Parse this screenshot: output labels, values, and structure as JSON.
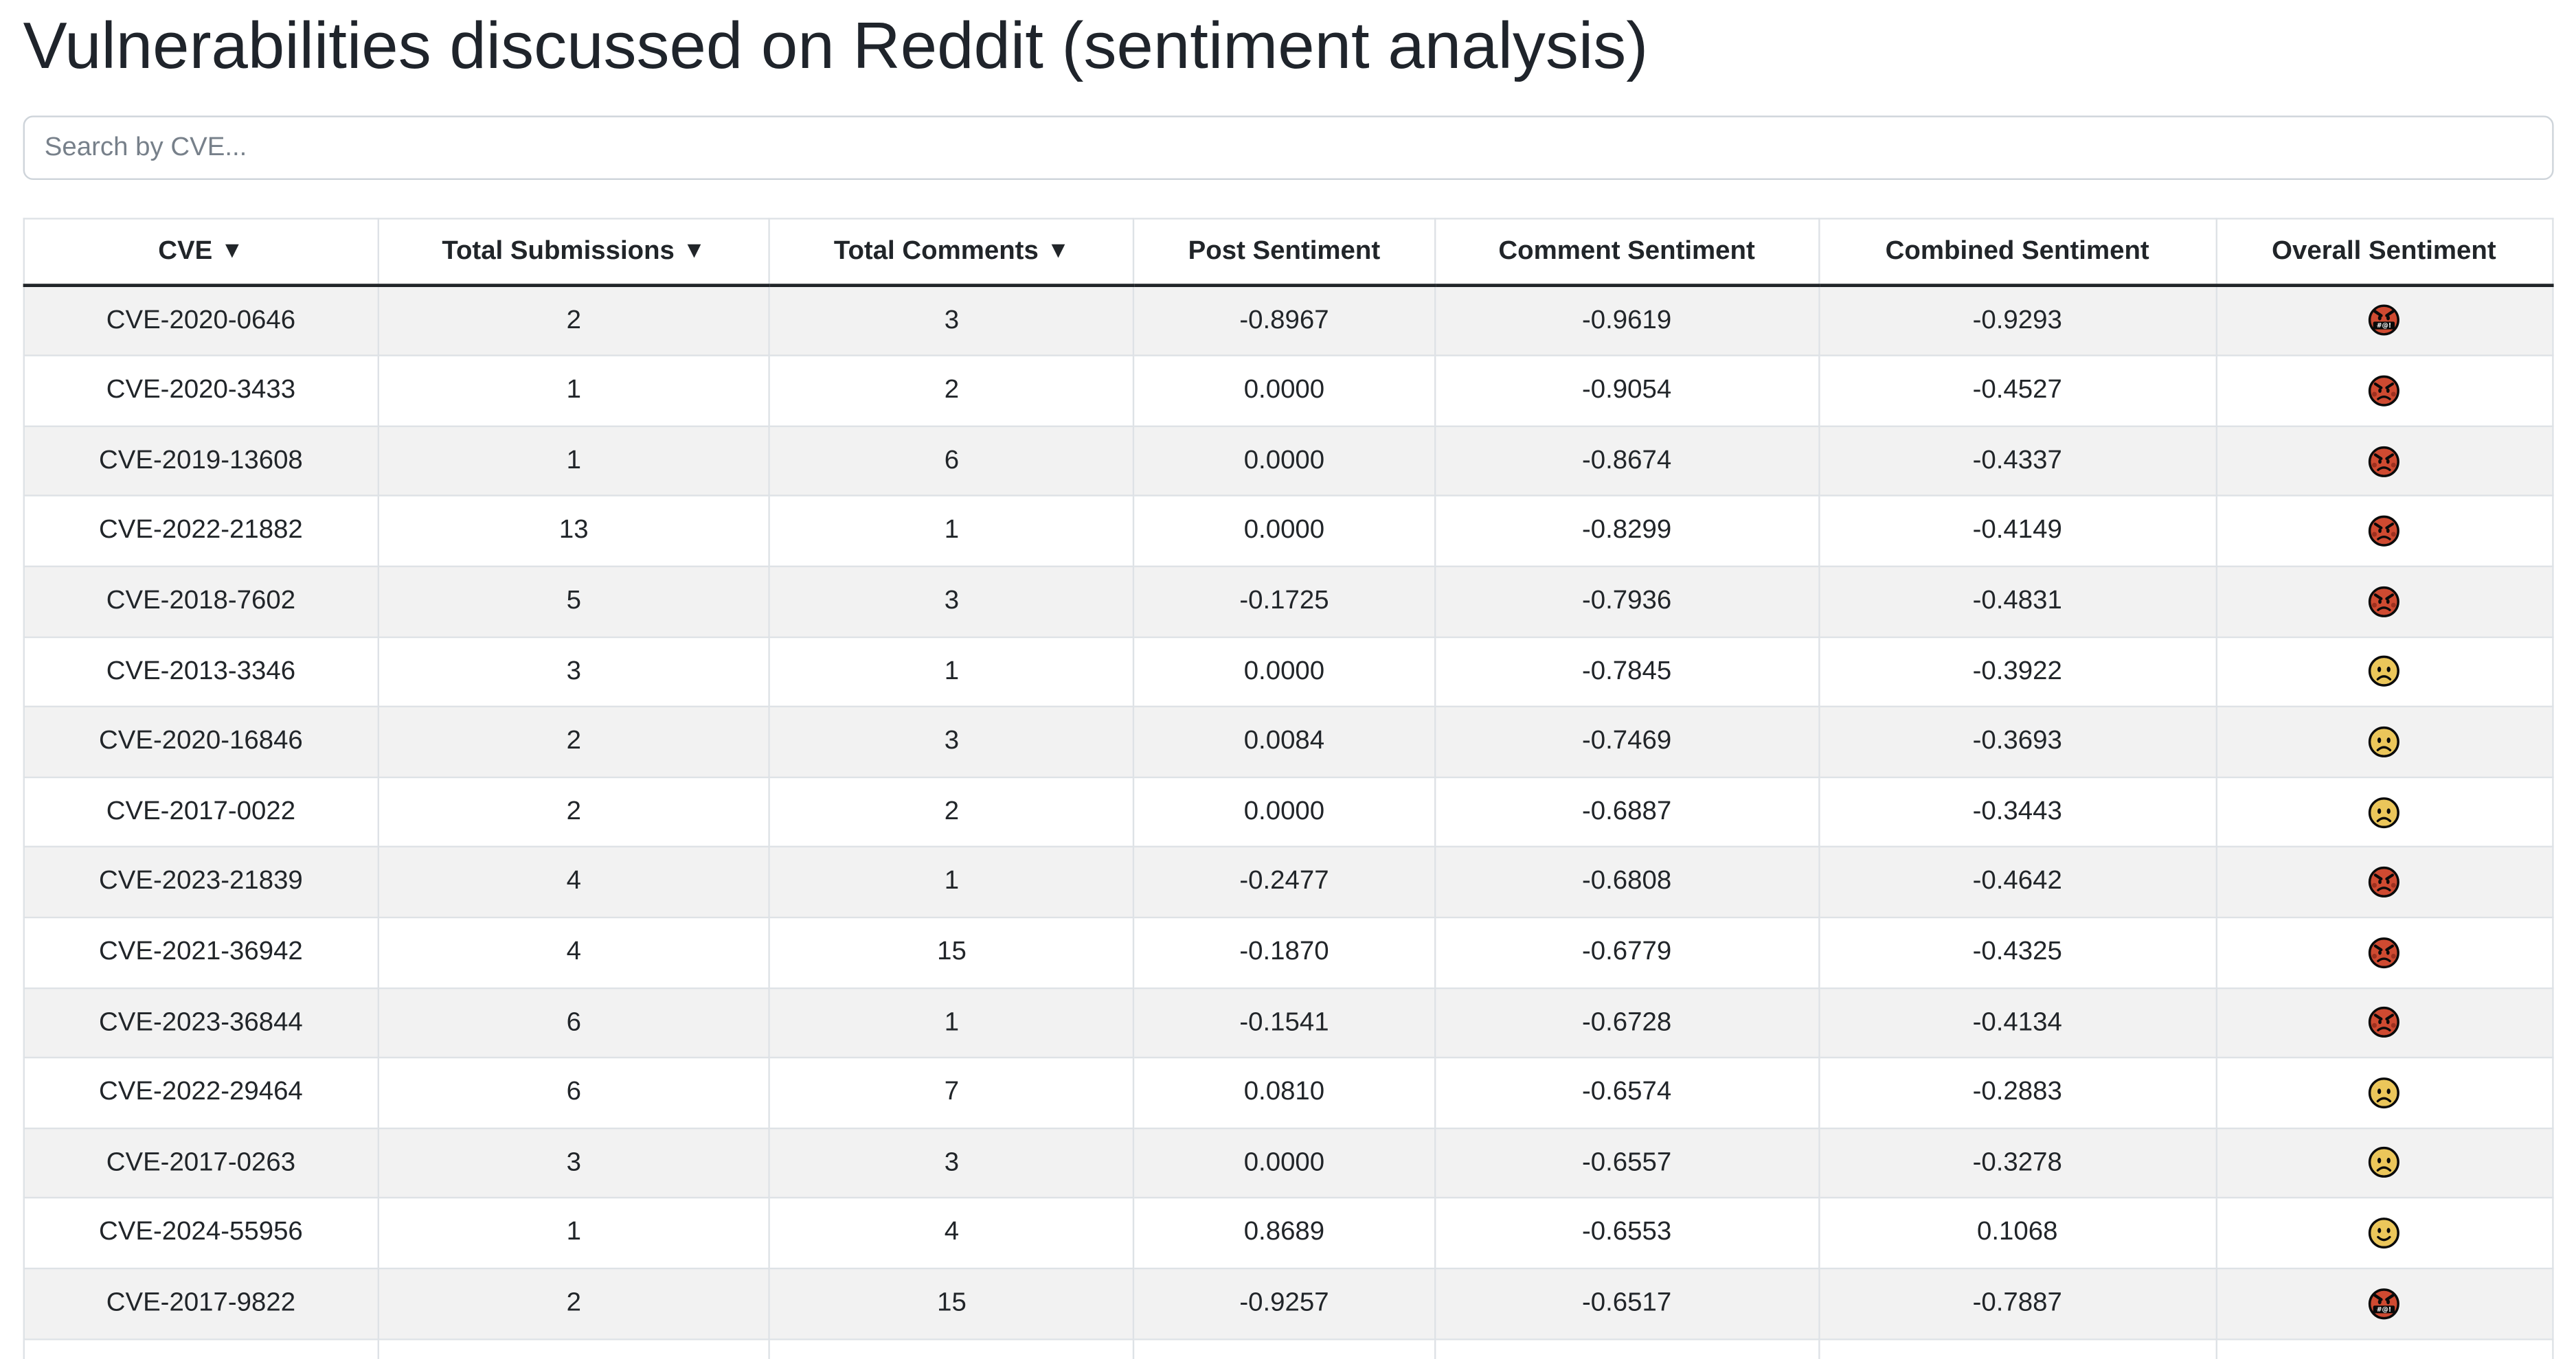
{
  "page": {
    "title": "Vulnerabilities discussed on Reddit (sentiment analysis)"
  },
  "search": {
    "placeholder": "Search by CVE...",
    "value": ""
  },
  "table": {
    "sort_indicator": "▼",
    "columns": [
      {
        "label": "CVE",
        "sortable": true
      },
      {
        "label": "Total Submissions",
        "sortable": true
      },
      {
        "label": "Total Comments",
        "sortable": true
      },
      {
        "label": "Post Sentiment",
        "sortable": false
      },
      {
        "label": "Comment Sentiment",
        "sortable": false
      },
      {
        "label": "Combined Sentiment",
        "sortable": false
      },
      {
        "label": "Overall Sentiment",
        "sortable": false
      }
    ],
    "rows": [
      {
        "cve": "CVE-2020-0646",
        "total_submissions": "2",
        "total_comments": "3",
        "post_sentiment": "-0.8967",
        "comment_sentiment": "-0.9619",
        "combined_sentiment": "-0.9293",
        "overall_sentiment_icon": "face-with-symbols-on-mouth"
      },
      {
        "cve": "CVE-2020-3433",
        "total_submissions": "1",
        "total_comments": "2",
        "post_sentiment": "0.0000",
        "comment_sentiment": "-0.9054",
        "combined_sentiment": "-0.4527",
        "overall_sentiment_icon": "angry-face"
      },
      {
        "cve": "CVE-2019-13608",
        "total_submissions": "1",
        "total_comments": "6",
        "post_sentiment": "0.0000",
        "comment_sentiment": "-0.8674",
        "combined_sentiment": "-0.4337",
        "overall_sentiment_icon": "angry-face"
      },
      {
        "cve": "CVE-2022-21882",
        "total_submissions": "13",
        "total_comments": "1",
        "post_sentiment": "0.0000",
        "comment_sentiment": "-0.8299",
        "combined_sentiment": "-0.4149",
        "overall_sentiment_icon": "angry-face"
      },
      {
        "cve": "CVE-2018-7602",
        "total_submissions": "5",
        "total_comments": "3",
        "post_sentiment": "-0.1725",
        "comment_sentiment": "-0.7936",
        "combined_sentiment": "-0.4831",
        "overall_sentiment_icon": "angry-face"
      },
      {
        "cve": "CVE-2013-3346",
        "total_submissions": "3",
        "total_comments": "1",
        "post_sentiment": "0.0000",
        "comment_sentiment": "-0.7845",
        "combined_sentiment": "-0.3922",
        "overall_sentiment_icon": "frowning-face"
      },
      {
        "cve": "CVE-2020-16846",
        "total_submissions": "2",
        "total_comments": "3",
        "post_sentiment": "0.0084",
        "comment_sentiment": "-0.7469",
        "combined_sentiment": "-0.3693",
        "overall_sentiment_icon": "frowning-face"
      },
      {
        "cve": "CVE-2017-0022",
        "total_submissions": "2",
        "total_comments": "2",
        "post_sentiment": "0.0000",
        "comment_sentiment": "-0.6887",
        "combined_sentiment": "-0.3443",
        "overall_sentiment_icon": "frowning-face"
      },
      {
        "cve": "CVE-2023-21839",
        "total_submissions": "4",
        "total_comments": "1",
        "post_sentiment": "-0.2477",
        "comment_sentiment": "-0.6808",
        "combined_sentiment": "-0.4642",
        "overall_sentiment_icon": "angry-face"
      },
      {
        "cve": "CVE-2021-36942",
        "total_submissions": "4",
        "total_comments": "15",
        "post_sentiment": "-0.1870",
        "comment_sentiment": "-0.6779",
        "combined_sentiment": "-0.4325",
        "overall_sentiment_icon": "angry-face"
      },
      {
        "cve": "CVE-2023-36844",
        "total_submissions": "6",
        "total_comments": "1",
        "post_sentiment": "-0.1541",
        "comment_sentiment": "-0.6728",
        "combined_sentiment": "-0.4134",
        "overall_sentiment_icon": "angry-face"
      },
      {
        "cve": "CVE-2022-29464",
        "total_submissions": "6",
        "total_comments": "7",
        "post_sentiment": "0.0810",
        "comment_sentiment": "-0.6574",
        "combined_sentiment": "-0.2883",
        "overall_sentiment_icon": "frowning-face"
      },
      {
        "cve": "CVE-2017-0263",
        "total_submissions": "3",
        "total_comments": "3",
        "post_sentiment": "0.0000",
        "comment_sentiment": "-0.6557",
        "combined_sentiment": "-0.3278",
        "overall_sentiment_icon": "frowning-face"
      },
      {
        "cve": "CVE-2024-55956",
        "total_submissions": "1",
        "total_comments": "4",
        "post_sentiment": "0.8689",
        "comment_sentiment": "-0.6553",
        "combined_sentiment": "0.1068",
        "overall_sentiment_icon": "slightly-smiling-face"
      },
      {
        "cve": "CVE-2017-9822",
        "total_submissions": "2",
        "total_comments": "15",
        "post_sentiment": "-0.9257",
        "comment_sentiment": "-0.6517",
        "combined_sentiment": "-0.7887",
        "overall_sentiment_icon": "face-with-symbols-on-mouth"
      }
    ]
  },
  "colors": {
    "header_border_dark": "#212529",
    "row_stripe": "#f2f2f2",
    "table_border": "#dee2e6",
    "emoji_red": "#cf4a31",
    "emoji_red_cheek": "#9e3120",
    "emoji_yellow": "#ebc65a",
    "emoji_outline": "#0a0a0a"
  }
}
